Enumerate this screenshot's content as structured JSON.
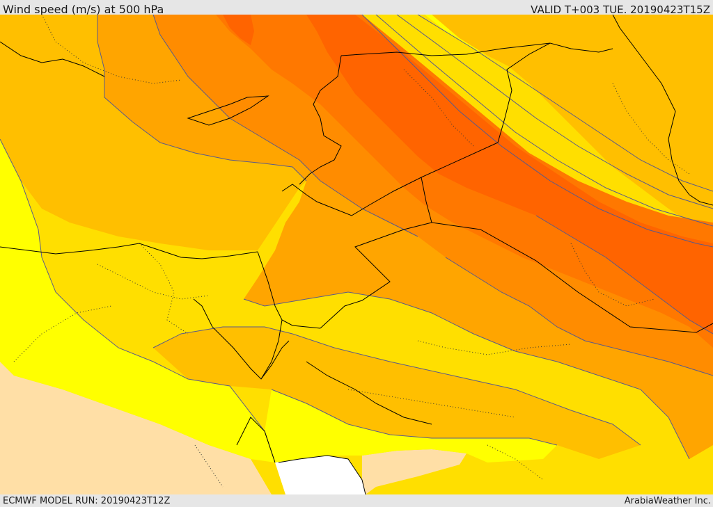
{
  "header": {
    "title": "Wind speed (m/s) at 500 hPa",
    "valid": "VALID T+003 TUE. 20190423T15Z"
  },
  "footer": {
    "model_run": "ECMWF MODEL RUN: 20190423T12Z",
    "credit": "ArabiaWeather Inc."
  },
  "colors": {
    "calm": "#ffffff",
    "pale": "#ffdfa6",
    "yellow": "#ffff00",
    "gold": "#ffdf00",
    "amber": "#ffbf00",
    "orange_light": "#ffa500",
    "orange": "#ff8c00",
    "orange_deep": "#ff7800",
    "red_orange": "#ff6400",
    "contour_line": "#5a5a8a",
    "border_line": "#000000"
  }
}
